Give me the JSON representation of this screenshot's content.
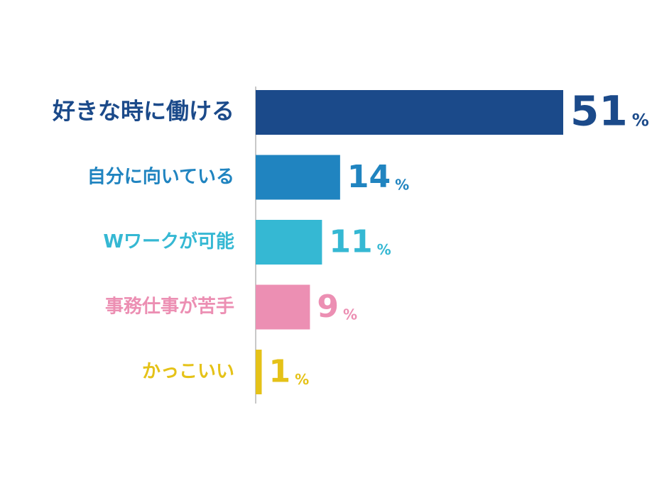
{
  "chart_data": {
    "type": "bar",
    "orientation": "horizontal",
    "categories": [
      "好きな時に働ける",
      "自分に向いている",
      "Wワークが可能",
      "事務仕事が苦手",
      "かっこいい"
    ],
    "values": [
      51,
      14,
      11,
      9,
      1
    ],
    "unit": "%",
    "colors": [
      "#1b4a8a",
      "#2084c0",
      "#35b8d3",
      "#ec8fb3",
      "#e5c218"
    ]
  }
}
